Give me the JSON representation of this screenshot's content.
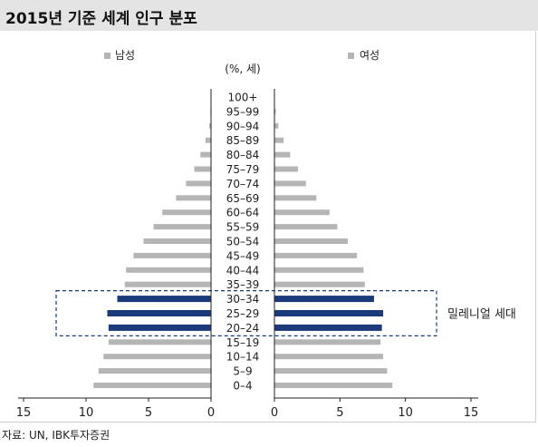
{
  "header": {
    "title": "2015년 기준 세계 인구 분포"
  },
  "source": "자료: UN, IBK투자증권",
  "chart_data": {
    "type": "bar",
    "unit_label": "(%, 세)",
    "categories": [
      "100+",
      "95-99",
      "90-94",
      "85-89",
      "80-84",
      "75-79",
      "70-74",
      "65-69",
      "60-64",
      "55-59",
      "50-54",
      "45-49",
      "40-44",
      "35-39",
      "30-34",
      "25-29",
      "20-24",
      "15-19",
      "10-14",
      "5-9",
      "0-4"
    ],
    "category_labels": [
      "100+",
      "95–99",
      "90–94",
      "85–89",
      "80–84",
      "75–79",
      "70–74",
      "65–69",
      "60–64",
      "55–59",
      "50–54",
      "45–49",
      "40–44",
      "35–39",
      "30–34",
      "25–29",
      "20–24",
      "15–19",
      "10–14",
      "5–9",
      "0–4"
    ],
    "series": [
      {
        "name": "남성",
        "values": [
          0.0,
          0.05,
          0.15,
          0.45,
          0.85,
          1.35,
          2.0,
          2.8,
          3.9,
          4.6,
          5.4,
          6.2,
          6.8,
          6.9,
          7.5,
          8.3,
          8.2,
          8.2,
          8.6,
          9.0,
          9.4
        ]
      },
      {
        "name": "여성",
        "values": [
          0.0,
          0.1,
          0.3,
          0.7,
          1.2,
          1.8,
          2.4,
          3.2,
          4.2,
          4.8,
          5.6,
          6.3,
          6.8,
          6.9,
          7.6,
          8.3,
          8.2,
          8.1,
          8.3,
          8.6,
          9.0
        ]
      }
    ],
    "highlight": {
      "categories": [
        "30-34",
        "25-29",
        "20-24"
      ],
      "label": "밀레니얼 세대"
    },
    "xlim": [
      0,
      15
    ],
    "x_ticks": [
      0,
      5,
      10,
      15
    ],
    "legend": "top",
    "grid": false,
    "colors": {
      "bar": "#b5b5b5",
      "highlight_bar": "#1a3a7c",
      "highlight_box": "#1a3a7c",
      "axis": "#222222"
    }
  }
}
